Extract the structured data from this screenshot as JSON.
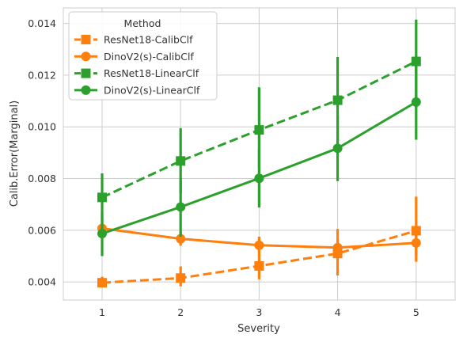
{
  "chart_data": {
    "type": "line",
    "title": "",
    "xlabel": "Severity",
    "ylabel": "Calib.Error(Marginal)",
    "categories": [
      "1",
      "2",
      "3",
      "4",
      "5"
    ],
    "ylim": [
      0.0033,
      0.0146
    ],
    "yticks": [
      "0.004",
      "0.006",
      "0.008",
      "0.010",
      "0.012",
      "0.014"
    ],
    "grid": true,
    "legend": {
      "title": "Method",
      "placement": "top-left"
    },
    "series": [
      {
        "name": "ResNet18-CalibClf",
        "color": "#ff7f0e",
        "marker": "square",
        "dashed": true,
        "values": [
          0.00397,
          0.00415,
          0.00462,
          0.0051,
          0.00598
        ],
        "ci_low": [
          0.00387,
          0.00383,
          0.0041,
          0.00425,
          0.00505
        ],
        "ci_high": [
          0.0042,
          0.0046,
          0.0052,
          0.00605,
          0.0073
        ]
      },
      {
        "name": "DinoV2(s)-CalibClf",
        "color": "#ff7f0e",
        "marker": "circle",
        "dashed": false,
        "values": [
          0.00607,
          0.00567,
          0.00542,
          0.00533,
          0.00551
        ],
        "ci_low": [
          0.00575,
          0.0054,
          0.00515,
          0.00505,
          0.00478
        ],
        "ci_high": [
          0.0064,
          0.00595,
          0.00575,
          0.00565,
          0.00615
        ]
      },
      {
        "name": "ResNet18-LinearClf",
        "color": "#2ca02c",
        "marker": "square",
        "dashed": true,
        "values": [
          0.00727,
          0.00868,
          0.00988,
          0.01103,
          0.01253
        ],
        "ci_low": [
          0.0064,
          0.00745,
          0.0084,
          0.00945,
          0.01075
        ],
        "ci_high": [
          0.0082,
          0.00995,
          0.01153,
          0.0127,
          0.01415
        ]
      },
      {
        "name": "DinoV2(s)-LinearClf",
        "color": "#2ca02c",
        "marker": "circle",
        "dashed": false,
        "values": [
          0.00587,
          0.0069,
          0.00801,
          0.00917,
          0.01096
        ],
        "ci_low": [
          0.005,
          0.00575,
          0.00688,
          0.0079,
          0.0095
        ],
        "ci_high": [
          0.00665,
          0.008,
          0.00915,
          0.01045,
          0.0124
        ]
      }
    ]
  }
}
